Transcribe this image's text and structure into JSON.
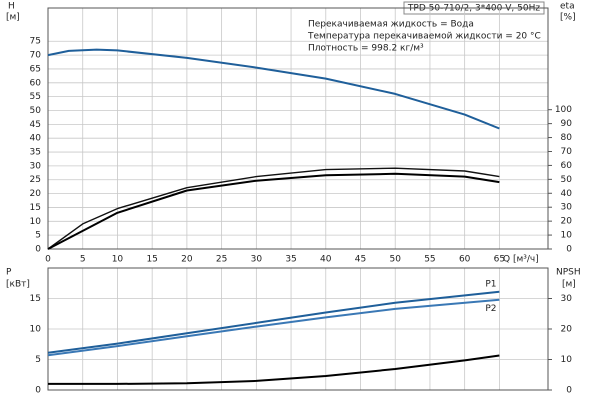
{
  "chart_data": [
    {
      "type": "line",
      "title": "TPD 50-710/2, 3*400 V, 50Hz",
      "annotations": [
        "Перекачиваемая жидкость = Вода",
        "Температура перекачиваемой жидкости = 20 °C",
        "Плотность = 998.2 кг/м³"
      ],
      "y_label": "H",
      "y_unit": "[м]",
      "y2_label": "eta",
      "y2_unit": "[%]",
      "x_label": "Q [м³/ч]",
      "xlim": [
        0,
        72
      ],
      "xticks": [
        0,
        5,
        10,
        15,
        20,
        25,
        30,
        35,
        40,
        45,
        50,
        55,
        60,
        65
      ],
      "ylim": [
        0,
        87
      ],
      "yticks": [
        0,
        5,
        10,
        15,
        20,
        25,
        30,
        35,
        40,
        45,
        50,
        55,
        60,
        65,
        70,
        75
      ],
      "y2lim": [
        0,
        173
      ],
      "y2ticks": [
        0,
        10,
        20,
        30,
        40,
        50,
        60,
        70,
        80,
        90,
        100
      ],
      "grid": true,
      "series": [
        {
          "color": "#1f5f9a",
          "x": [
            0,
            3,
            7,
            10,
            20,
            30,
            40,
            50,
            60,
            65
          ],
          "values": [
            70,
            71.5,
            72,
            71.7,
            69,
            65.5,
            61.5,
            56,
            48.5,
            43.5
          ]
        },
        {
          "color": "#111111",
          "axis": "y2",
          "x": [
            0,
            5,
            10,
            20,
            30,
            40,
            50,
            60,
            65
          ],
          "values": [
            0,
            18,
            29,
            44,
            52,
            57,
            58,
            56,
            52
          ]
        },
        {
          "color": "#000000",
          "axis": "y2",
          "x": [
            0,
            5,
            10,
            20,
            30,
            40,
            50,
            60,
            65
          ],
          "values": [
            0,
            13,
            26,
            42,
            49,
            53,
            54,
            52,
            48
          ]
        }
      ]
    },
    {
      "type": "line",
      "y_label": "P",
      "y_unit": "[кВт]",
      "y2_label": "NPSH",
      "y2_unit": "[м]",
      "xlim": [
        0,
        72
      ],
      "ylim": [
        0,
        20
      ],
      "yticks": [
        0,
        5,
        10,
        15
      ],
      "y2lim": [
        0,
        40
      ],
      "y2ticks": [
        0,
        10,
        20,
        30
      ],
      "grid": true,
      "series": [
        {
          "name": "P1",
          "color": "#1f5f9a",
          "x": [
            0,
            10,
            20,
            30,
            40,
            50,
            65
          ],
          "values": [
            6.1,
            7.6,
            9.3,
            11.0,
            12.7,
            14.3,
            16.1
          ]
        },
        {
          "name": "P2",
          "color": "#3a78b5",
          "x": [
            0,
            10,
            20,
            30,
            40,
            50,
            65
          ],
          "values": [
            5.7,
            7.2,
            8.8,
            10.4,
            11.9,
            13.3,
            14.8
          ]
        },
        {
          "color": "#000000",
          "axis": "y2",
          "x": [
            0,
            10,
            20,
            30,
            40,
            50,
            60,
            65
          ],
          "values": [
            2,
            2,
            2.2,
            3,
            4.6,
            6.9,
            9.7,
            11.3
          ]
        }
      ]
    }
  ]
}
